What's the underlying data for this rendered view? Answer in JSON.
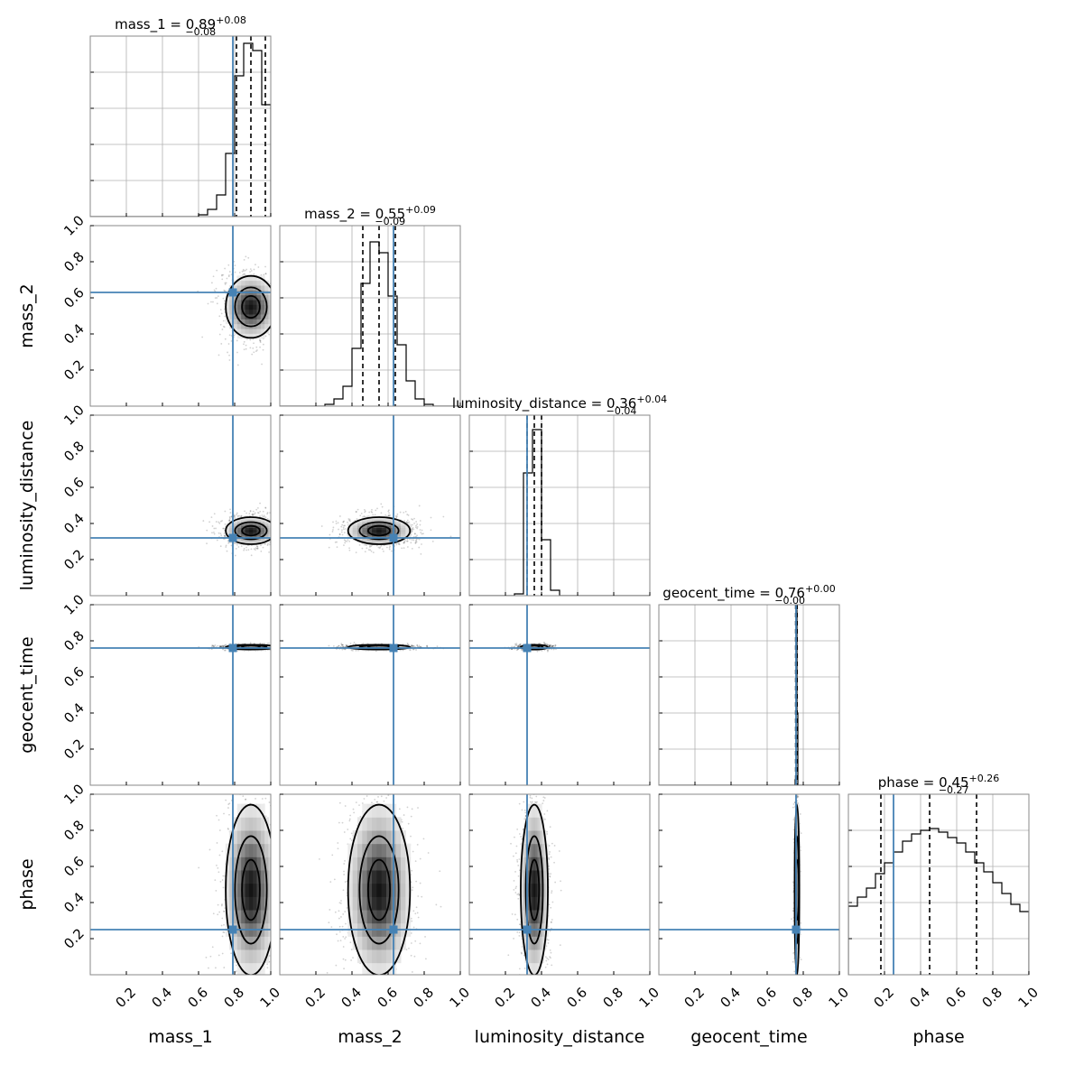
{
  "chart_data": {
    "type": "corner",
    "grid": true,
    "parameters": [
      "mass_1",
      "mass_2",
      "luminosity_distance",
      "geocent_time",
      "phase"
    ],
    "axis_labels": [
      "mass_1",
      "mass_2",
      "luminosity_distance",
      "geocent_time",
      "phase"
    ],
    "titles": [
      {
        "name": "mass_1",
        "median": "0.89",
        "plus": "+0.08",
        "minus": "−0.08"
      },
      {
        "name": "mass_2",
        "median": "0.55",
        "plus": "+0.09",
        "minus": "−0.09"
      },
      {
        "name": "luminosity_distance",
        "median": "0.36",
        "plus": "+0.04",
        "minus": "−0.04"
      },
      {
        "name": "geocent_time",
        "median": "0.76",
        "plus": "+0.00",
        "minus": "−0.00"
      },
      {
        "name": "phase",
        "median": "0.45",
        "plus": "+0.26",
        "minus": "−0.27"
      }
    ],
    "axis_range": [
      0,
      1
    ],
    "tick_values": [
      0.2,
      0.4,
      0.6,
      0.8,
      1.0
    ],
    "tick_labels": [
      "0.2",
      "0.4",
      "0.6",
      "0.8",
      "1.0"
    ],
    "truths": [
      0.79,
      0.63,
      0.32,
      0.76,
      0.25
    ],
    "quantiles": [
      [
        0.81,
        0.89,
        0.97
      ],
      [
        0.46,
        0.55,
        0.64
      ],
      [
        0.32,
        0.36,
        0.4
      ],
      [
        0.758,
        0.762,
        0.766
      ],
      [
        0.18,
        0.45,
        0.71
      ]
    ],
    "histograms": [
      {
        "param": "mass_1",
        "bin_edges": [
          0.6,
          0.65,
          0.7,
          0.75,
          0.8,
          0.85,
          0.9,
          0.95,
          1.0
        ],
        "counts": [
          0.01,
          0.04,
          0.12,
          0.35,
          0.78,
          0.96,
          0.92,
          0.62
        ]
      },
      {
        "param": "mass_2",
        "bin_edges": [
          0.25,
          0.3,
          0.35,
          0.4,
          0.45,
          0.5,
          0.55,
          0.6,
          0.65,
          0.7,
          0.75,
          0.8,
          0.85
        ],
        "counts": [
          0.01,
          0.04,
          0.11,
          0.32,
          0.68,
          0.91,
          0.85,
          0.61,
          0.34,
          0.14,
          0.04,
          0.01
        ]
      },
      {
        "param": "luminosity_distance",
        "bin_edges": [
          0.25,
          0.3,
          0.35,
          0.4,
          0.45,
          0.5
        ],
        "counts": [
          0.01,
          0.68,
          0.92,
          0.31,
          0.03
        ]
      },
      {
        "param": "geocent_time",
        "bin_edges": [
          0.755,
          0.76,
          0.765,
          0.77
        ],
        "counts": [
          0.03,
          0.97,
          0.4
        ]
      },
      {
        "param": "phase",
        "bin_edges": [
          0.0,
          0.05,
          0.1,
          0.15,
          0.2,
          0.25,
          0.3,
          0.35,
          0.4,
          0.45,
          0.5,
          0.55,
          0.6,
          0.65,
          0.7,
          0.75,
          0.8,
          0.85,
          0.9,
          0.95,
          1.0
        ],
        "counts": [
          0.38,
          0.43,
          0.48,
          0.56,
          0.62,
          0.68,
          0.74,
          0.78,
          0.8,
          0.81,
          0.79,
          0.76,
          0.73,
          0.68,
          0.62,
          0.57,
          0.51,
          0.45,
          0.39,
          0.35
        ]
      }
    ],
    "contour_levels": [
      0.25,
      0.6,
      0.9
    ],
    "posterior_means": [
      0.89,
      0.55,
      0.36,
      0.765,
      0.47
    ],
    "posterior_sds": [
      0.065,
      0.08,
      0.035,
      0.006,
      0.22
    ]
  }
}
